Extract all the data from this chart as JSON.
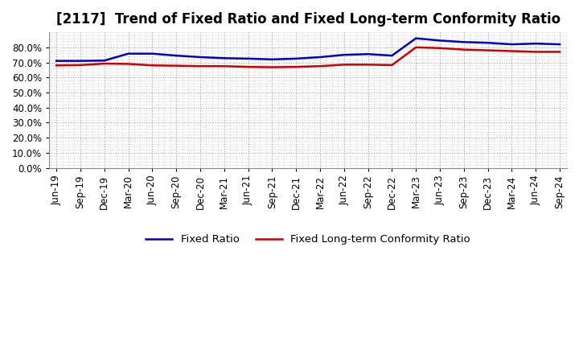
{
  "title": "[2117]  Trend of Fixed Ratio and Fixed Long-term Conformity Ratio",
  "x_labels": [
    "Jun-19",
    "Sep-19",
    "Dec-19",
    "Mar-20",
    "Jun-20",
    "Sep-20",
    "Dec-20",
    "Mar-21",
    "Jun-21",
    "Sep-21",
    "Dec-21",
    "Mar-22",
    "Jun-22",
    "Sep-22",
    "Dec-22",
    "Mar-23",
    "Jun-23",
    "Sep-23",
    "Dec-23",
    "Mar-24",
    "Jun-24",
    "Sep-24"
  ],
  "fixed_ratio": [
    71.0,
    71.0,
    71.2,
    75.8,
    75.8,
    74.5,
    73.5,
    72.8,
    72.5,
    72.0,
    72.5,
    73.5,
    75.0,
    75.5,
    74.5,
    86.0,
    84.5,
    83.5,
    83.0,
    82.0,
    82.5,
    82.0
  ],
  "fixed_lt_ratio": [
    68.0,
    68.2,
    69.2,
    69.0,
    68.0,
    67.8,
    67.5,
    67.5,
    67.0,
    66.8,
    67.0,
    67.5,
    68.5,
    68.5,
    68.2,
    80.0,
    79.5,
    78.5,
    78.0,
    77.5,
    77.0,
    77.0
  ],
  "blue_color": "#0000cc",
  "red_color": "#cc0000",
  "background_color": "#ffffff",
  "plot_bg_color": "#ffffff",
  "grid_color": "#999999",
  "ylim": [
    0,
    90
  ],
  "yticks": [
    0,
    10,
    20,
    30,
    40,
    50,
    60,
    70,
    80
  ],
  "legend_fixed_ratio": "Fixed Ratio",
  "legend_fixed_lt": "Fixed Long-term Conformity Ratio",
  "title_fontsize": 12,
  "tick_fontsize": 8.5,
  "legend_fontsize": 9.5
}
